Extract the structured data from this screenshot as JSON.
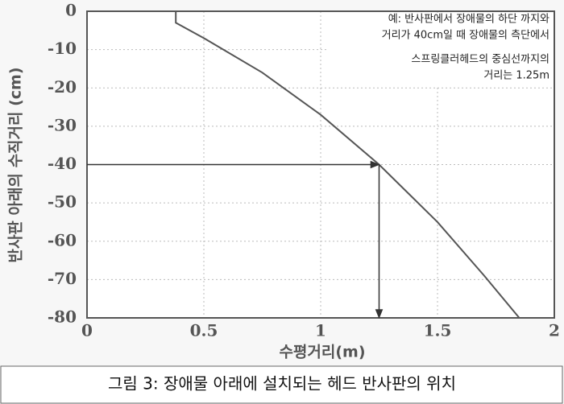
{
  "chart_data": {
    "type": "line",
    "x_label": "수평거리(m)",
    "y_label": "반사판 아래의 수직거리 (cm)",
    "x": [
      0.38,
      0.38,
      0.5,
      0.75,
      1.0,
      1.25,
      1.5,
      1.7,
      1.85
    ],
    "series": [
      {
        "color": "#555555",
        "values": [
          0,
          -3,
          -7,
          -16,
          -27,
          -40,
          -55,
          -69,
          -80
        ]
      }
    ],
    "xlim": [
      0,
      2
    ],
    "xticks": [
      0,
      0.5,
      1,
      1.5,
      2
    ],
    "ylim": [
      -80,
      0
    ],
    "yticks": [
      0,
      -10,
      -20,
      -30,
      -40,
      -50,
      -60,
      -70,
      -80
    ],
    "grid": true,
    "annotation_lines": [
      "예: 반사판에서 장애물의 하단 까지와",
      "거리가 40cm일 때 장애물의 측단에서",
      "스프링클러헤드의 중심선까지의",
      "거리는 1.25m"
    ],
    "annotation_point": {
      "x": 1.25,
      "y": -40
    },
    "caption": "그림 3: 장애물 아래에 설치되는 헤드 반사판의 위치"
  }
}
